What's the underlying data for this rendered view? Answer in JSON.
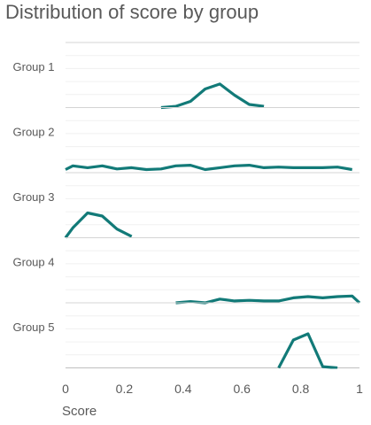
{
  "chart_data": {
    "type": "line",
    "title": "Distribution of score by group",
    "xlabel": "Score",
    "ylabel": "",
    "xlim": [
      0,
      1
    ],
    "x_ticks": [
      "0",
      "0.2",
      "0.4",
      "0.6",
      "0.8",
      "1"
    ],
    "groups": [
      "Group 1",
      "Group 2",
      "Group 3",
      "Group 4",
      "Group 5"
    ],
    "line_color": "#127a78",
    "grid": true,
    "series": [
      {
        "x": [
          0.325,
          0.375,
          0.425,
          0.475,
          0.525,
          0.575,
          0.625,
          0.675
        ],
        "y": [
          0.0,
          0.02,
          0.1,
          0.3,
          0.38,
          0.2,
          0.05,
          0.02
        ]
      },
      {
        "x": [
          0.0,
          0.025,
          0.075,
          0.125,
          0.175,
          0.225,
          0.275,
          0.325,
          0.375,
          0.425,
          0.475,
          0.525,
          0.575,
          0.625,
          0.675,
          0.725,
          0.775,
          0.825,
          0.875,
          0.925,
          0.975
        ],
        "y": [
          0.05,
          0.11,
          0.08,
          0.11,
          0.06,
          0.08,
          0.05,
          0.06,
          0.11,
          0.12,
          0.05,
          0.08,
          0.11,
          0.12,
          0.08,
          0.09,
          0.08,
          0.08,
          0.08,
          0.09,
          0.05
        ]
      },
      {
        "x": [
          0.0,
          0.025,
          0.075,
          0.125,
          0.175,
          0.225
        ],
        "y": [
          0.0,
          0.16,
          0.4,
          0.35,
          0.14,
          0.02
        ]
      },
      {
        "x": [
          0.375,
          0.425,
          0.475,
          0.525,
          0.575,
          0.625,
          0.675,
          0.725,
          0.775,
          0.825,
          0.875,
          0.925,
          0.975,
          1.0
        ],
        "y": [
          0.0,
          0.02,
          0.0,
          0.06,
          0.03,
          0.04,
          0.03,
          0.03,
          0.08,
          0.1,
          0.08,
          0.1,
          0.11,
          0.0
        ]
      },
      {
        "x": [
          0.725,
          0.775,
          0.825,
          0.875,
          0.925
        ],
        "y": [
          0.0,
          0.45,
          0.55,
          0.02,
          0.0
        ]
      }
    ]
  }
}
